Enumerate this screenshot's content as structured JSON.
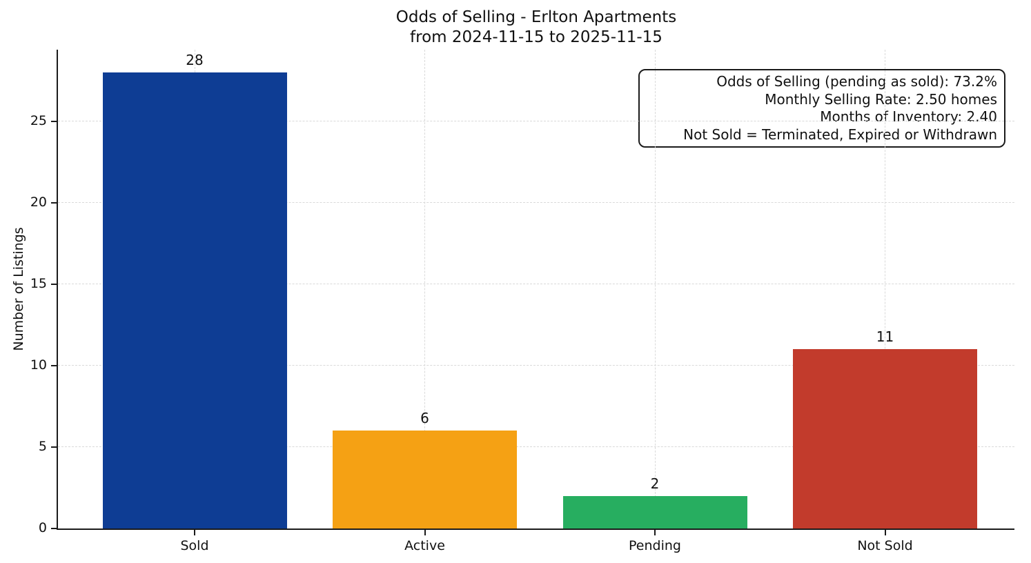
{
  "figure": {
    "background": "#ffffff",
    "title_line1": "Odds of Selling - Erlton Apartments",
    "title_line2": "from 2024-11-15 to 2025-11-15"
  },
  "annotation": {
    "lines": [
      "Odds of Selling (pending as sold): 73.2%",
      "Monthly Selling Rate: 2.50 homes",
      "Months of Inventory: 2.40",
      "Not Sold = Terminated, Expired or Withdrawn"
    ]
  },
  "chart_data": {
    "type": "bar",
    "title": "Odds of Selling - Erlton Apartments",
    "subtitle": "from 2024-11-15 to 2025-11-15",
    "xlabel": "",
    "ylabel": "Number of Listings",
    "categories": [
      "Sold",
      "Active",
      "Pending",
      "Not Sold"
    ],
    "values": [
      28,
      6,
      2,
      11
    ],
    "bar_colors": [
      "#0e3d94",
      "#f5a114",
      "#27ae60",
      "#c23b2c"
    ],
    "value_labels": [
      "28",
      "6",
      "2",
      "11"
    ],
    "yticks": [
      0,
      5,
      10,
      15,
      20,
      25
    ],
    "ylim": [
      0,
      29.4
    ],
    "grid": {
      "style": "dashed",
      "axes": "both",
      "color": "#d9d9d9"
    },
    "legend": "none",
    "stats": {
      "odds_of_selling_pending_as_sold_pct": 73.2,
      "monthly_selling_rate_homes": 2.5,
      "months_of_inventory": 2.4
    }
  }
}
